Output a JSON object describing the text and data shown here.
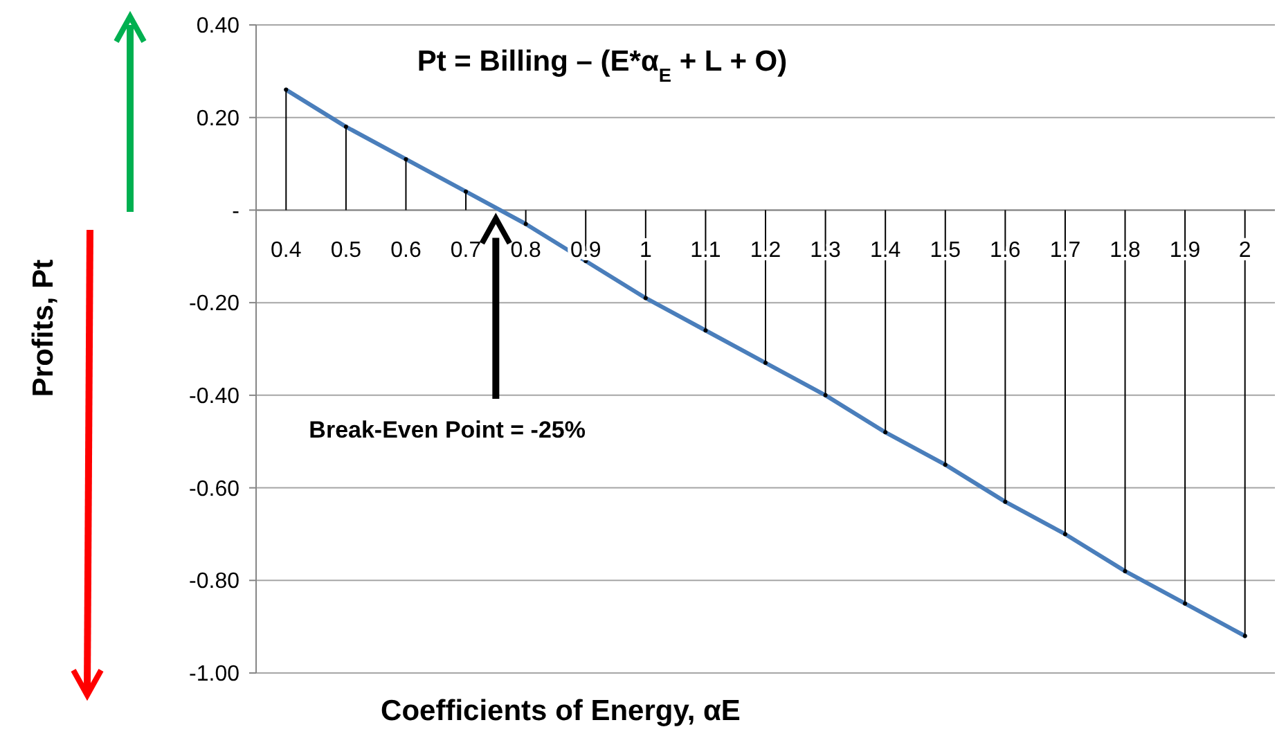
{
  "chart_data": {
    "type": "line",
    "title": "Pt = Billing – (E*α$_{E}$ + L  + O)",
    "xlabel": "Coefficients of Energy, αE",
    "ylabel": "Profits, Pt",
    "categories": [
      "0.4",
      "0.5",
      "0.6",
      "0.7",
      "0.8",
      "0.9",
      "1",
      "1.1",
      "1.2",
      "1.3",
      "1.4",
      "1.5",
      "1.6",
      "1.7",
      "1.8",
      "1.9",
      "2"
    ],
    "series": [
      {
        "type": "lollipop",
        "color": "#000000",
        "values": [
          0.26,
          0.18,
          0.11,
          0.04,
          -0.03,
          -0.11,
          -0.19,
          -0.26,
          -0.33,
          -0.4,
          -0.48,
          -0.55,
          -0.63,
          -0.7,
          -0.78,
          -0.85,
          -0.92
        ]
      },
      {
        "color": "#4a7ebb",
        "values": [
          0.26,
          0.18,
          0.11,
          0.04,
          -0.03,
          -0.11,
          -0.19,
          -0.26,
          -0.33,
          -0.4,
          -0.48,
          -0.55,
          -0.63,
          -0.7,
          -0.78,
          -0.85,
          -0.92
        ]
      }
    ],
    "ylim": [
      -1.0,
      0.4
    ],
    "yticks": [
      {
        "value": 0.4,
        "label": "0.40"
      },
      {
        "value": 0.2,
        "label": "0.20"
      },
      {
        "value": 0,
        "label": "-"
      },
      {
        "value": -0.2,
        "label": "-0.20"
      },
      {
        "value": -0.4,
        "label": "-0.40"
      },
      {
        "value": -0.6,
        "label": "-0.60"
      },
      {
        "value": -0.8,
        "label": "-0.80"
      },
      {
        "value": -1.0,
        "label": "-1.00"
      }
    ],
    "grid": "y",
    "line_style": "solid",
    "annotations": [
      "Break-Even Point = -25%"
    ]
  }
}
